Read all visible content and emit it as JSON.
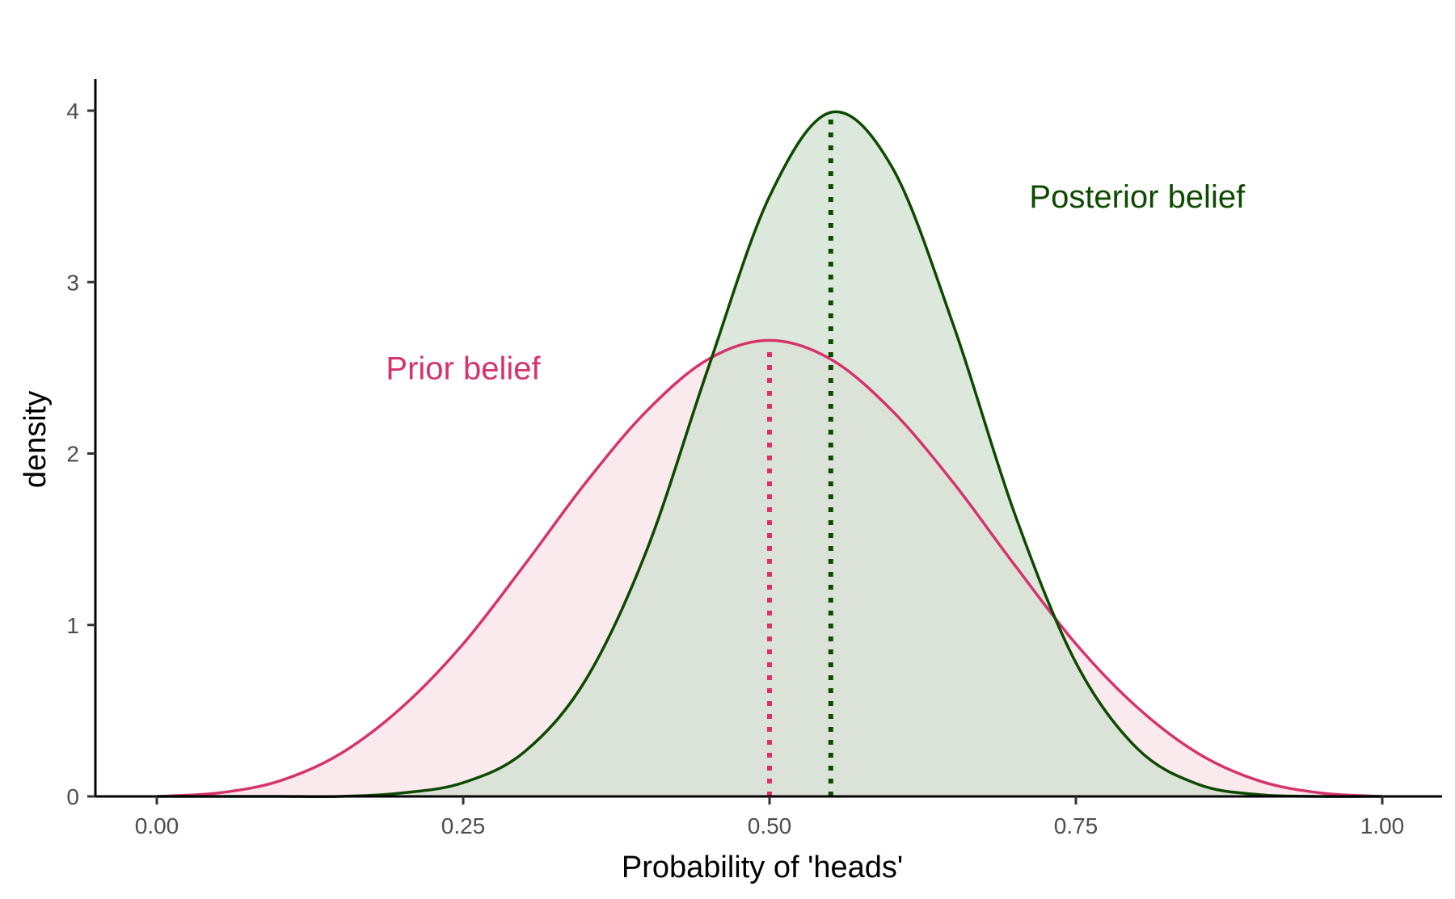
{
  "chart_data": {
    "type": "area",
    "xlabel": "Probability of 'heads'",
    "ylabel": "density",
    "xlim": [
      0,
      1
    ],
    "ylim": [
      0,
      4
    ],
    "x_ticks": [
      0,
      0.25,
      0.5,
      0.75,
      1
    ],
    "x_tick_labels": [
      "0.00",
      "0.25",
      "0.50",
      "0.75",
      "1.00"
    ],
    "y_ticks": [
      0,
      1,
      2,
      3,
      4
    ],
    "y_tick_labels": [
      "0",
      "1",
      "2",
      "3",
      "4"
    ],
    "grid": false,
    "x": [
      0.0,
      0.05,
      0.1,
      0.15,
      0.2,
      0.25,
      0.3,
      0.35,
      0.4,
      0.45,
      0.5,
      0.55,
      0.6,
      0.65,
      0.7,
      0.75,
      0.8,
      0.85,
      0.9,
      0.95,
      1.0
    ],
    "series": [
      {
        "key": "prior",
        "color": "#D6336C",
        "fill": "#F8E1E7",
        "mean": 0.5,
        "values": [
          0.0,
          0.02,
          0.09,
          0.25,
          0.52,
          0.89,
          1.35,
          1.83,
          2.25,
          2.55,
          2.66,
          2.55,
          2.25,
          1.83,
          1.35,
          0.89,
          0.52,
          0.25,
          0.09,
          0.02,
          0.0
        ]
      },
      {
        "key": "posterior",
        "color": "#0D4A00",
        "fill": "#D0E0D0",
        "mean": 0.55,
        "values": [
          0.0,
          0.0,
          0.0,
          0.0,
          0.02,
          0.08,
          0.26,
          0.68,
          1.44,
          2.5,
          3.5,
          3.99,
          3.67,
          2.75,
          1.65,
          0.78,
          0.28,
          0.07,
          0.01,
          0.0,
          0.0
        ]
      }
    ],
    "annotations": [
      {
        "text": "Prior belief",
        "x": 0.25,
        "y": 2.5,
        "color": "#D6336C"
      },
      {
        "text": "Posterior belief",
        "x": 0.8,
        "y": 3.5,
        "color": "#0D4A00"
      }
    ]
  }
}
